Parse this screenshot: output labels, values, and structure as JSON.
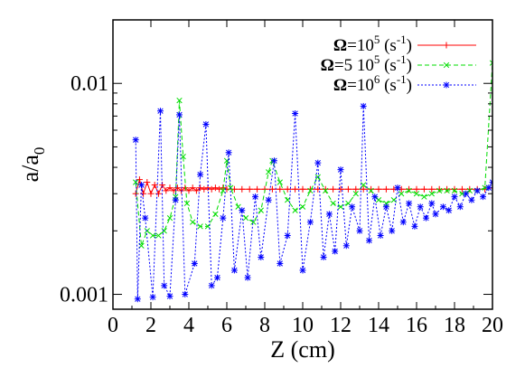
{
  "chart_data": {
    "type": "line",
    "xlabel": "Z (cm)",
    "ylabel_main": "a/a",
    "ylabel_sub": "0",
    "xlim": [
      0,
      20
    ],
    "ylim": [
      0.00085,
      0.02
    ],
    "yscale": "log",
    "x_ticks": [
      0,
      2,
      4,
      6,
      8,
      10,
      12,
      14,
      16,
      18,
      20
    ],
    "x_tick_labels": [
      "0",
      "2",
      "4",
      "6",
      "8",
      "10",
      "12",
      "14",
      "16",
      "18",
      "20"
    ],
    "y_ticks": [
      0.001,
      0.01
    ],
    "y_tick_labels": [
      "0.001",
      "0.01"
    ],
    "grid": false,
    "legend_placement": "top-right",
    "series": [
      {
        "name": "Ω=10^5 (s^-1)",
        "legend": {
          "symbol": "Ω",
          "pre": "=10",
          "sup1": "5",
          "mid": " (s",
          "sup2": "-1",
          "post": ")"
        },
        "color": "#ff0000",
        "marker": "plus",
        "dash": "",
        "x": [
          1.2,
          1.4,
          1.6,
          1.8,
          2.0,
          2.2,
          2.4,
          2.6,
          2.8,
          3.0,
          3.2,
          3.4,
          3.6,
          3.8,
          4.0,
          4.2,
          4.4,
          4.6,
          4.8,
          5.0,
          5.2,
          5.4,
          5.6,
          5.8,
          6.0,
          6.4,
          6.8,
          7.2,
          7.6,
          8.0,
          8.4,
          8.8,
          9.2,
          9.6,
          10.0,
          10.4,
          10.8,
          11.2,
          11.6,
          12.0,
          12.4,
          12.8,
          13.2,
          13.6,
          14.0,
          14.4,
          14.8,
          15.2,
          15.6,
          16.0,
          16.4,
          16.8,
          17.2,
          17.6,
          18.0,
          18.4,
          18.8,
          19.2,
          19.6,
          20.0
        ],
        "y": [
          0.003,
          0.0035,
          0.003,
          0.0034,
          0.003,
          0.0033,
          0.003,
          0.0033,
          0.0031,
          0.0032,
          0.0031,
          0.0032,
          0.0031,
          0.0032,
          0.0031,
          0.0032,
          0.0031,
          0.0032,
          0.00315,
          0.0032,
          0.00315,
          0.0032,
          0.00315,
          0.0032,
          0.00315,
          0.00315,
          0.00315,
          0.00315,
          0.00315,
          0.00315,
          0.00315,
          0.00315,
          0.00315,
          0.00315,
          0.00315,
          0.00315,
          0.00315,
          0.00315,
          0.00315,
          0.00315,
          0.00315,
          0.00315,
          0.00315,
          0.00315,
          0.00315,
          0.00315,
          0.00315,
          0.00315,
          0.00315,
          0.00315,
          0.00315,
          0.00315,
          0.00315,
          0.00315,
          0.00315,
          0.00315,
          0.00315,
          0.00315,
          0.00315,
          0.0032
        ]
      },
      {
        "name": "Ω=5 10^5 (s^-1)",
        "legend": {
          "symbol": "Ω",
          "pre": "=5 10",
          "sup1": "5",
          "mid": " (s",
          "sup2": "-1",
          "post": ")"
        },
        "color": "#00dd00",
        "marker": "x",
        "dash": "5,3",
        "x": [
          1.2,
          1.5,
          1.8,
          2.1,
          2.4,
          2.7,
          3.0,
          3.3,
          3.5,
          3.7,
          3.9,
          4.2,
          4.6,
          5.0,
          5.4,
          5.8,
          6.0,
          6.2,
          6.6,
          7.0,
          7.4,
          7.8,
          8.2,
          8.4,
          8.8,
          9.2,
          9.6,
          10.0,
          10.4,
          10.8,
          11.2,
          11.6,
          12.0,
          12.4,
          12.8,
          13.2,
          13.6,
          14.0,
          14.4,
          14.8,
          15.2,
          15.6,
          16.0,
          16.4,
          16.8,
          17.2,
          17.6,
          18.0,
          18.4,
          18.8,
          19.2,
          19.6,
          20.0
        ],
        "y": [
          0.0034,
          0.0017,
          0.002,
          0.0019,
          0.0019,
          0.002,
          0.0023,
          0.0029,
          0.0083,
          0.0045,
          0.0027,
          0.0022,
          0.0021,
          0.0021,
          0.0024,
          0.0031,
          0.0043,
          0.0032,
          0.0026,
          0.0023,
          0.0022,
          0.0025,
          0.0038,
          0.0043,
          0.0034,
          0.0028,
          0.0025,
          0.0026,
          0.0031,
          0.0036,
          0.0031,
          0.0027,
          0.0026,
          0.0027,
          0.003,
          0.0033,
          0.0031,
          0.0028,
          0.0027,
          0.0028,
          0.003,
          0.0031,
          0.003,
          0.0029,
          0.003,
          0.0031,
          0.0031,
          0.0031,
          0.003,
          0.0031,
          0.0031,
          0.0032,
          0.0125
        ]
      },
      {
        "name": "Ω=10^6 (s^-1)",
        "legend": {
          "symbol": "Ω",
          "pre": "=10",
          "sup1": "6",
          "mid": " (s",
          "sup2": "-1",
          "post": ")"
        },
        "color": "#0000ff",
        "marker": "star",
        "dash": "2,2",
        "x": [
          1.2,
          1.3,
          1.5,
          1.7,
          2.1,
          2.5,
          2.7,
          3.0,
          3.3,
          3.5,
          3.8,
          4.3,
          4.6,
          4.9,
          5.2,
          5.5,
          5.8,
          6.1,
          6.4,
          6.8,
          7.1,
          7.5,
          7.8,
          8.2,
          8.5,
          8.8,
          9.2,
          9.6,
          10.0,
          10.4,
          10.8,
          11.1,
          11.4,
          11.7,
          12.0,
          12.3,
          12.6,
          13.0,
          13.2,
          13.5,
          13.8,
          14.1,
          14.4,
          14.7,
          15.0,
          15.3,
          15.6,
          15.9,
          16.2,
          16.5,
          16.8,
          17.0,
          17.4,
          17.7,
          18.0,
          18.3,
          18.6,
          18.9,
          19.2,
          19.5,
          19.8,
          20.0
        ],
        "y": [
          0.0054,
          0.00095,
          0.0033,
          0.0023,
          0.00097,
          0.0074,
          0.0011,
          0.00098,
          0.0028,
          0.0071,
          0.001,
          0.0014,
          0.0037,
          0.0064,
          0.0011,
          0.0012,
          0.0023,
          0.0047,
          0.0013,
          0.0025,
          0.0012,
          0.0029,
          0.0015,
          0.0028,
          0.0043,
          0.0014,
          0.0019,
          0.0072,
          0.0013,
          0.0022,
          0.0042,
          0.0015,
          0.0024,
          0.0016,
          0.0039,
          0.0017,
          0.0026,
          0.002,
          0.0078,
          0.0018,
          0.0029,
          0.0019,
          0.0026,
          0.002,
          0.0032,
          0.0022,
          0.0027,
          0.0021,
          0.0026,
          0.0023,
          0.0027,
          0.0024,
          0.0026,
          0.0025,
          0.0029,
          0.0026,
          0.003,
          0.0028,
          0.0031,
          0.0029,
          0.0032,
          0.0034
        ]
      }
    ]
  }
}
